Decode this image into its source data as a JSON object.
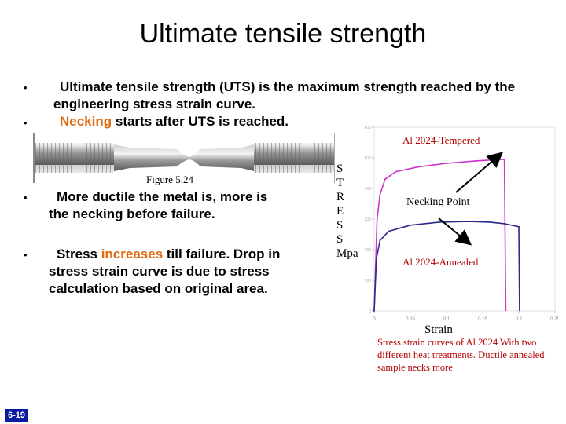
{
  "title": "Ultimate tensile strength",
  "bullets_top": [
    {
      "text": "Ultimate tensile strength (UTS) is the maximum strength reached by the engineering stress strain curve."
    },
    {
      "highlight": "Necking",
      "text": " starts after UTS is reached."
    }
  ],
  "bullets_left": [
    {
      "text": "More ductile the metal is, more is the necking before failure."
    },
    {
      "prefix": "Stress ",
      "highlight": "increases",
      "text": " till failure. Drop in stress strain curve is due to stress calculation based on original area."
    }
  ],
  "figure_caption": "Figure 5.24",
  "chart": {
    "y_letters": "S\nT\nR\nE\nS\nS\nMpa",
    "x_label": "Strain",
    "label_tempered": "Al 2024-Tempered",
    "label_annealed": "Al 2024-Annealed",
    "necking_label": "Necking Point",
    "caption": "Stress strain curves of Al 2024 With two different  heat treatments. Ductile annealed sample necks more"
  },
  "chart_data": {
    "type": "line",
    "xlabel": "Strain",
    "ylabel": "STRESS Mpa",
    "xlim": [
      0,
      0.25
    ],
    "ylim": [
      0,
      600
    ],
    "x_ticks": [
      "0",
      "0.05",
      "0.1",
      "0.15",
      "0.2",
      "0.25"
    ],
    "y_ticks": [
      "600",
      "500",
      "400",
      "300",
      "200",
      "100",
      "0"
    ],
    "series": [
      {
        "name": "Al 2024-Tempered",
        "color": "#cc33cc",
        "x": [
          0,
          0.004,
          0.008,
          0.015,
          0.03,
          0.06,
          0.1,
          0.14,
          0.17,
          0.18,
          0.182
        ],
        "y": [
          0,
          300,
          380,
          430,
          455,
          470,
          482,
          490,
          494,
          495,
          0
        ]
      },
      {
        "name": "Al 2024-Annealed",
        "color": "#2a2a8a",
        "x": [
          0,
          0.003,
          0.008,
          0.02,
          0.05,
          0.09,
          0.13,
          0.16,
          0.18,
          0.2,
          0.201
        ],
        "y": [
          0,
          170,
          230,
          260,
          280,
          290,
          292,
          290,
          285,
          275,
          0
        ]
      }
    ],
    "colors": {
      "tempered": "#cc33cc",
      "annealed": "#2a2a8a",
      "label_red": "#b30000",
      "highlight": "#e26a12"
    }
  },
  "slide_number": "6-19"
}
